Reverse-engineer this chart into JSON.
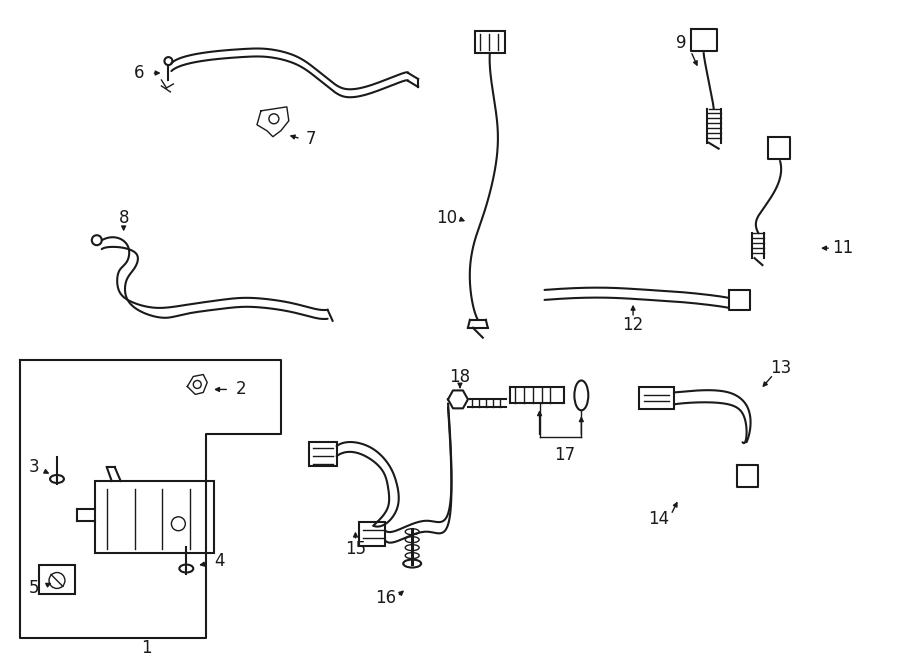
{
  "background_color": "#ffffff",
  "line_color": "#1a1a1a",
  "lw_thin": 1.0,
  "lw_med": 1.5,
  "lw_thick": 2.2
}
